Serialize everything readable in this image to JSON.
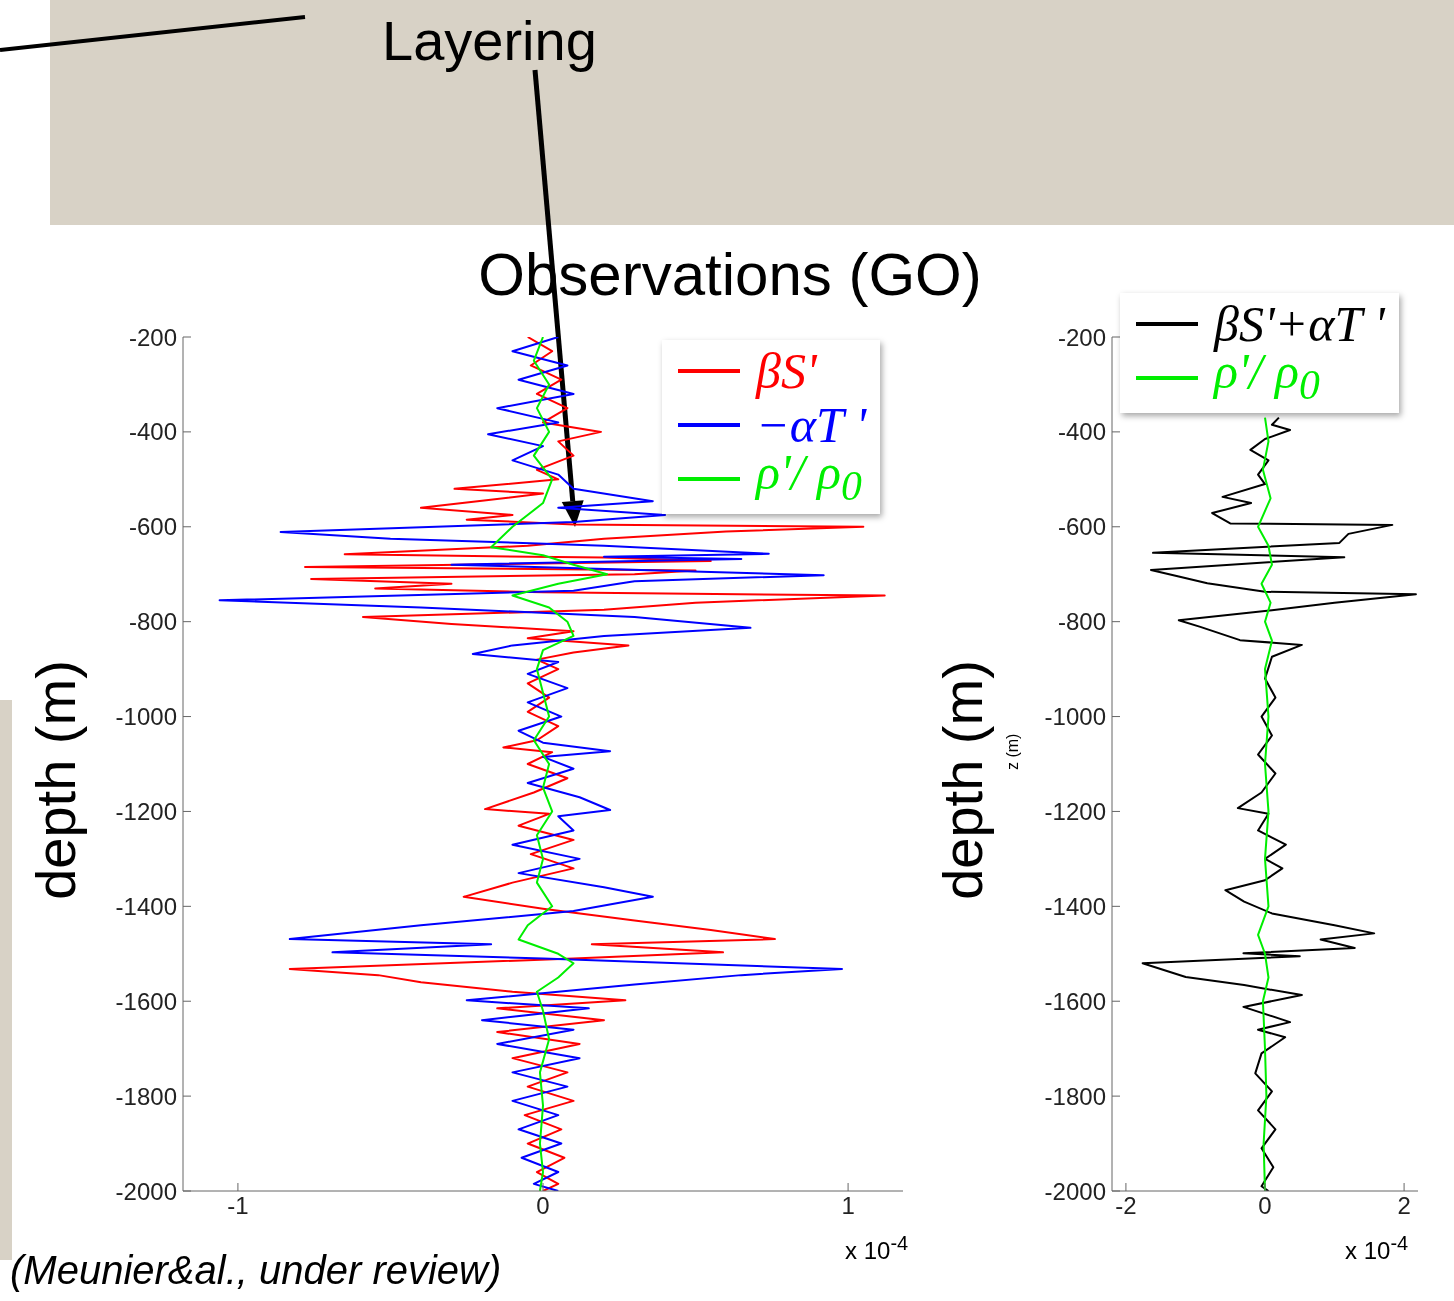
{
  "chart_data": [
    {
      "type": "line",
      "title": "Observations (GO)",
      "xlabel": "x 10$^{-4}$",
      "ylabel": "depth (m)",
      "xlim": [
        -1.18,
        1.18
      ],
      "xticks": [
        -1,
        0,
        1
      ],
      "ylim": [
        -2000,
        -200
      ],
      "yticks": [
        -200,
        -400,
        -600,
        -800,
        -1000,
        -1200,
        -1400,
        -1600,
        -1800,
        -2000
      ],
      "legend": "top right",
      "annotations": [
        "Layering",
        "(Meunier&al., under review)"
      ],
      "series": [
        {
          "name": "βS'",
          "color": "#ff0000",
          "x": [
            -0.05,
            0.03,
            -0.04,
            0.06,
            -0.02,
            0.08,
            0.0,
            0.19,
            0.05,
            0.1,
            -0.02,
            0.05,
            -0.29,
            0.0,
            -0.2,
            -0.4,
            -0.1,
            -0.25,
            0.1,
            1.05,
            0.6,
            0.2,
            -0.05,
            -0.65,
            0.2,
            0.55,
            -0.78,
            0.5,
            0.3,
            -0.76,
            -0.3,
            -0.55,
            0.0,
            1.12,
            0.5,
            0.2,
            -0.59,
            -0.3,
            0.1,
            -0.05,
            0.28,
            0.1,
            -0.02,
            0.05,
            -0.05,
            0.02,
            -0.05,
            0.05,
            -0.02,
            -0.13,
            0.03,
            -0.05,
            0.08,
            -0.03,
            -0.19,
            0.02,
            -0.08,
            0.1,
            -0.04,
            0.1,
            -0.1,
            -0.26,
            0.0,
            0.3,
            0.55,
            0.76,
            0.16,
            0.59,
            0.1,
            -0.83,
            -0.54,
            -0.4,
            -0.1,
            0.27,
            -0.15,
            0.2,
            -0.15,
            0.12,
            -0.1,
            0.08,
            -0.05,
            0.1,
            -0.06,
            0.06,
            -0.05,
            0.07,
            -0.02,
            0.05,
            0.0
          ],
          "values": [
            -200,
            -230,
            -260,
            -290,
            -320,
            -350,
            -380,
            -400,
            -420,
            -450,
            -480,
            -500,
            -520,
            -530,
            -545,
            -560,
            -575,
            -585,
            -595,
            -600,
            -610,
            -625,
            -640,
            -658,
            -665,
            -672,
            -685,
            -692,
            -700,
            -710,
            -720,
            -730,
            -738,
            -745,
            -760,
            -775,
            -790,
            -805,
            -820,
            -835,
            -850,
            -865,
            -880,
            -900,
            -930,
            -960,
            -990,
            -1020,
            -1050,
            -1065,
            -1075,
            -1100,
            -1130,
            -1160,
            -1195,
            -1205,
            -1230,
            -1260,
            -1290,
            -1320,
            -1350,
            -1380,
            -1405,
            -1430,
            -1450,
            -1469,
            -1480,
            -1497,
            -1510,
            -1532,
            -1545,
            -1560,
            -1580,
            -1598,
            -1615,
            -1640,
            -1665,
            -1690,
            -1720,
            -1750,
            -1780,
            -1810,
            -1840,
            -1870,
            -1900,
            -1930,
            -1960,
            -1985,
            -2000
          ]
        },
        {
          "name": "−αT '",
          "color": "#0000ff",
          "x": [
            0.05,
            -0.1,
            0.08,
            -0.08,
            0.1,
            -0.15,
            0.05,
            -0.18,
            0.0,
            -0.1,
            0.05,
            0.1,
            0.36,
            0.05,
            0.4,
            0.1,
            -0.86,
            -0.5,
            0.2,
            0.74,
            0.2,
            0.65,
            -0.3,
            0.92,
            0.3,
            0.1,
            -1.06,
            -0.4,
            0.3,
            0.68,
            0.2,
            -0.1,
            -0.23,
            0.05,
            -0.05,
            0.08,
            -0.05,
            0.06,
            -0.08,
            0.0,
            0.22,
            0.0,
            0.1,
            -0.05,
            0.12,
            0.22,
            0.05,
            0.1,
            -0.1,
            0.12,
            -0.08,
            0.2,
            0.36,
            0.1,
            -0.4,
            -0.83,
            -0.17,
            -0.69,
            0.0,
            0.98,
            0.65,
            0.3,
            -0.25,
            0.15,
            -0.2,
            0.1,
            -0.15,
            0.12,
            -0.1,
            0.08,
            -0.1,
            0.05,
            -0.08,
            0.06,
            -0.07,
            0.05,
            -0.03,
            0.05
          ],
          "values": [
            -200,
            -230,
            -260,
            -290,
            -320,
            -350,
            -380,
            -405,
            -430,
            -460,
            -490,
            -520,
            -546,
            -560,
            -575,
            -590,
            -611,
            -625,
            -640,
            -657,
            -663,
            -668,
            -680,
            -702,
            -715,
            -735,
            -755,
            -770,
            -790,
            -813,
            -830,
            -850,
            -868,
            -885,
            -910,
            -940,
            -970,
            -1000,
            -1030,
            -1055,
            -1073,
            -1085,
            -1110,
            -1140,
            -1170,
            -1197,
            -1210,
            -1240,
            -1270,
            -1300,
            -1330,
            -1360,
            -1380,
            -1410,
            -1440,
            -1469,
            -1480,
            -1497,
            -1510,
            -1532,
            -1545,
            -1565,
            -1598,
            -1615,
            -1640,
            -1660,
            -1690,
            -1720,
            -1750,
            -1780,
            -1810,
            -1840,
            -1870,
            -1900,
            -1930,
            -1960,
            -1985,
            -2000
          ]
        },
        {
          "name": "ρ'/ ρ$_{0}$",
          "color": "#00ee00",
          "x": [
            0.0,
            -0.03,
            0.02,
            -0.02,
            0.02,
            -0.03,
            0.03,
            0.0,
            -0.1,
            -0.17,
            0.0,
            0.1,
            0.21,
            0.05,
            -0.1,
            0.02,
            0.08,
            0.1,
            0.0,
            -0.02,
            0.0,
            0.02,
            -0.03,
            0.02,
            0.0,
            0.03,
            -0.02,
            0.0,
            -0.02,
            0.03,
            -0.05,
            -0.08,
            0.05,
            0.1,
            0.05,
            -0.02,
            0.0,
            0.02,
            -0.01,
            0.0,
            -0.01,
            0.0,
            -0.01
          ],
          "values": [
            -200,
            -250,
            -300,
            -350,
            -400,
            -450,
            -500,
            -550,
            -600,
            -643,
            -660,
            -680,
            -700,
            -720,
            -745,
            -770,
            -800,
            -830,
            -860,
            -900,
            -950,
            -1000,
            -1050,
            -1100,
            -1150,
            -1200,
            -1250,
            -1300,
            -1350,
            -1400,
            -1440,
            -1470,
            -1500,
            -1520,
            -1550,
            -1580,
            -1620,
            -1680,
            -1750,
            -1820,
            -1900,
            -1960,
            -2000
          ]
        }
      ]
    },
    {
      "type": "line",
      "xlabel": "x 10$^{-4}$",
      "ylabel": "depth (m)",
      "xlim": [
        -2.2,
        2.2
      ],
      "xticks": [
        -2,
        0,
        2
      ],
      "ylim": [
        -2000,
        -200
      ],
      "yticks": [
        -200,
        -400,
        -600,
        -800,
        -1000,
        -1200,
        -1400,
        -1600,
        -1800,
        -2000
      ],
      "legend": "top right",
      "annotations": [
        "z (m)"
      ],
      "series": [
        {
          "name": "βS'+αT '",
          "color": "#000000",
          "x": [
            0.2,
            0.1,
            0.36,
            0.0,
            -0.21,
            0.05,
            -0.1,
            0.0,
            -0.61,
            -0.2,
            -0.76,
            -0.5,
            1.83,
            1.2,
            1.07,
            -1.61,
            1.14,
            -1.64,
            -1.24,
            -0.83,
            0.0,
            2.17,
            1.0,
            0.1,
            -1.24,
            -0.93,
            -0.36,
            0.53,
            0.1,
            0.0,
            0.15,
            -0.05,
            0.1,
            -0.1,
            0.15,
            -0.05,
            -0.39,
            0.05,
            -0.1,
            0.3,
            0.0,
            0.25,
            0.0,
            -0.57,
            -0.3,
            0.1,
            1.0,
            1.57,
            0.8,
            1.29,
            -0.31,
            0.5,
            -1.76,
            -1.14,
            -0.3,
            0.53,
            -0.31,
            0.36,
            -0.1,
            0.29,
            -0.05,
            -0.14,
            0.1,
            -0.1,
            0.15,
            -0.05,
            0.12,
            -0.05,
            0.05
          ],
          "values": [
            -370,
            -385,
            -396,
            -415,
            -438,
            -460,
            -490,
            -510,
            -537,
            -550,
            -571,
            -593,
            -596,
            -615,
            -634,
            -655,
            -664,
            -691,
            -705,
            -719,
            -737,
            -742,
            -760,
            -776,
            -797,
            -811,
            -839,
            -849,
            -874,
            -920,
            -960,
            -1000,
            -1040,
            -1080,
            -1120,
            -1160,
            -1193,
            -1205,
            -1240,
            -1270,
            -1300,
            -1320,
            -1345,
            -1366,
            -1390,
            -1415,
            -1440,
            -1457,
            -1470,
            -1488,
            -1499,
            -1505,
            -1520,
            -1549,
            -1566,
            -1587,
            -1612,
            -1644,
            -1660,
            -1676,
            -1710,
            -1752,
            -1790,
            -1830,
            -1870,
            -1910,
            -1950,
            -1990,
            -2000
          ]
        },
        {
          "name": "ρ'/ ρ$_{0}$",
          "color": "#00ee00",
          "x": [
            0.0,
            0.05,
            -0.03,
            0.08,
            -0.1,
            0.05,
            0.1,
            -0.05,
            0.08,
            0.0,
            0.1,
            0.0,
            0.05,
            0.0,
            0.05,
            0.0,
            0.05,
            -0.1,
            0.0,
            0.05,
            -0.03,
            0.0,
            0.02,
            -0.02,
            0.0
          ],
          "values": [
            -370,
            -420,
            -480,
            -540,
            -600,
            -640,
            -680,
            -720,
            -760,
            -800,
            -840,
            -900,
            -1000,
            -1100,
            -1200,
            -1300,
            -1400,
            -1460,
            -1500,
            -1550,
            -1600,
            -1700,
            -1800,
            -1900,
            -2000
          ]
        }
      ]
    }
  ]
}
